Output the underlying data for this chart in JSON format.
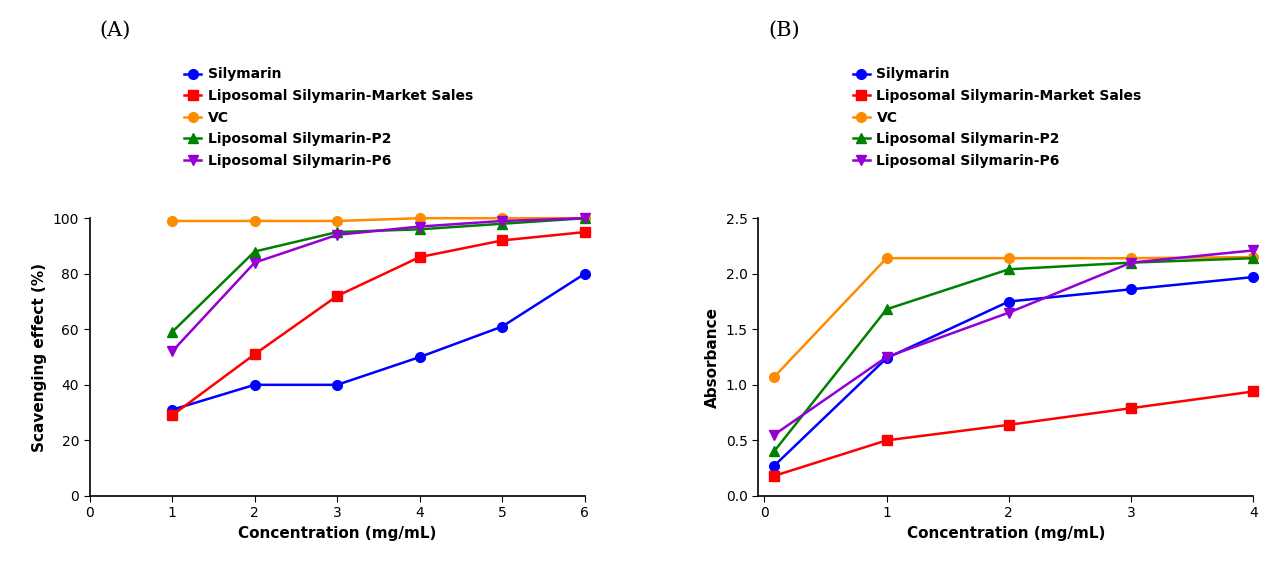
{
  "A": {
    "panel_label": "(A)",
    "xlabel": "Concentration (mg/mL)",
    "ylabel": "Scavenging effect (%)",
    "xlim": [
      0,
      6
    ],
    "ylim": [
      0,
      100
    ],
    "xticks": [
      0,
      1,
      2,
      3,
      4,
      5,
      6
    ],
    "yticks": [
      0,
      20,
      40,
      60,
      80,
      100
    ],
    "series": [
      {
        "label": "Silymarin",
        "color": "#0000FF",
        "marker": "o",
        "x": [
          1,
          2,
          3,
          4,
          5,
          6
        ],
        "y": [
          31,
          40,
          40,
          50,
          61,
          80
        ]
      },
      {
        "label": "Liposomal Silymarin-Market Sales",
        "color": "#FF0000",
        "marker": "s",
        "x": [
          1,
          2,
          3,
          4,
          5,
          6
        ],
        "y": [
          29,
          51,
          72,
          86,
          92,
          95
        ]
      },
      {
        "label": "VC",
        "color": "#FF8C00",
        "marker": "o",
        "x": [
          1,
          2,
          3,
          4,
          5,
          6
        ],
        "y": [
          99,
          99,
          99,
          100,
          100,
          100
        ]
      },
      {
        "label": "Liposomal Silymarin-P2",
        "color": "#008000",
        "marker": "^",
        "x": [
          1,
          2,
          3,
          4,
          5,
          6
        ],
        "y": [
          59,
          88,
          95,
          96,
          98,
          100
        ]
      },
      {
        "label": "Liposomal Silymarin-P6",
        "color": "#9400D3",
        "marker": "v",
        "x": [
          1,
          2,
          3,
          4,
          5,
          6
        ],
        "y": [
          52,
          84,
          94,
          97,
          99,
          100
        ]
      }
    ]
  },
  "B": {
    "panel_label": "(B)",
    "xlabel": "Concentration (mg/mL)",
    "ylabel": "Absorbance",
    "xlim": [
      -0.05,
      4
    ],
    "ylim": [
      0.0,
      2.5
    ],
    "xticks": [
      0,
      1,
      2,
      3,
      4
    ],
    "yticks": [
      0.0,
      0.5,
      1.0,
      1.5,
      2.0,
      2.5
    ],
    "series": [
      {
        "label": "Silymarin",
        "color": "#0000FF",
        "marker": "o",
        "x": [
          0.08,
          1,
          2,
          3,
          4
        ],
        "y": [
          0.27,
          1.24,
          1.75,
          1.86,
          1.97
        ]
      },
      {
        "label": "Liposomal Silymarin-Market Sales",
        "color": "#FF0000",
        "marker": "s",
        "x": [
          0.08,
          1,
          2,
          3,
          4
        ],
        "y": [
          0.18,
          0.5,
          0.64,
          0.79,
          0.94
        ]
      },
      {
        "label": "VC",
        "color": "#FF8C00",
        "marker": "o",
        "x": [
          0.08,
          1,
          2,
          3,
          4
        ],
        "y": [
          1.07,
          2.14,
          2.14,
          2.14,
          2.15
        ]
      },
      {
        "label": "Liposomal Silymarin-P2",
        "color": "#008000",
        "marker": "^",
        "x": [
          0.08,
          1,
          2,
          3,
          4
        ],
        "y": [
          0.4,
          1.68,
          2.04,
          2.1,
          2.14
        ]
      },
      {
        "label": "Liposomal Silymarin-P6",
        "color": "#9400D3",
        "marker": "v",
        "x": [
          0.08,
          1,
          2,
          3,
          4
        ],
        "y": [
          0.55,
          1.25,
          1.65,
          2.1,
          2.21
        ]
      }
    ]
  },
  "bg_color": "#FFFFFF",
  "line_width": 1.8,
  "marker_size": 7,
  "font_size_axis_label": 11,
  "font_size_tick": 10,
  "font_size_legend": 10,
  "font_size_panel_label": 15
}
